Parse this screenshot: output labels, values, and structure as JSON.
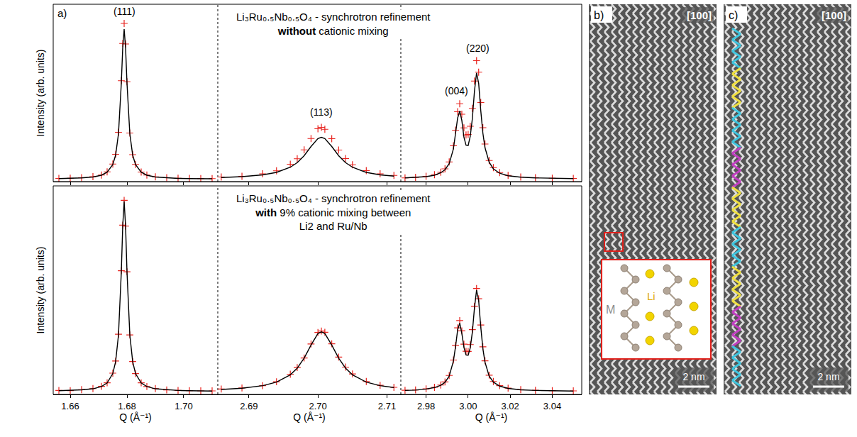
{
  "panel_label": "a)",
  "chart_data": [
    {
      "type": "scatter",
      "grid": false,
      "tick_labels": false,
      "ylabel": "Intensity (arb. units)",
      "x": [
        1.656,
        1.66,
        1.664,
        1.668,
        1.671,
        1.673,
        1.675,
        1.676,
        1.677,
        1.678,
        1.6785,
        1.679,
        1.6795,
        1.68,
        1.681,
        1.682,
        1.683,
        1.685,
        1.687,
        1.69,
        1.694,
        1.698,
        1.702,
        1.706,
        1.71
      ],
      "xlim": [
        1.654,
        1.712
      ],
      "xticks": [
        1.66,
        1.68,
        {
          "value": 1.7,
          "label": "1.70"
        }
      ],
      "ylim": [
        0,
        100
      ],
      "annotations": [
        {
          "text": "(111)",
          "x": 1.679,
          "y": 96
        }
      ],
      "series": [
        {
          "type": "scatter",
          "marker": "cross",
          "color": "#e8231e",
          "values": [
            1.8,
            1.9,
            2.2,
            2.8,
            3.7,
            5.5,
            9.9,
            15.4,
            27.8,
            56.9,
            77.9,
            89.2,
            77.6,
            56.3,
            27.4,
            15.2,
            9.7,
            5.4,
            3.7,
            2.7,
            2.2,
            1.9,
            1.8,
            1.7,
            1.7
          ]
        },
        {
          "type": "line",
          "line_style": "solid",
          "color": "#000000",
          "values": [
            1.7,
            1.8,
            2.1,
            2.6,
            3.6,
            5.3,
            9.6,
            15.0,
            27.0,
            55.5,
            75.5,
            86.0,
            75.5,
            55.5,
            27.0,
            15.0,
            9.6,
            5.3,
            3.6,
            2.6,
            2.1,
            1.8,
            1.7,
            1.6,
            1.6
          ]
        }
      ]
    },
    {
      "type": "scatter",
      "grid": false,
      "tick_labels": false,
      "title": [
        "Li₃Ru₀.₅Nb₀.₅O₄ - synchrotron refinement",
        "without cationic mixing"
      ],
      "title_bold": "without",
      "x": [
        2.686,
        2.689,
        2.692,
        2.694,
        2.696,
        2.697,
        2.698,
        2.699,
        2.7,
        2.7005,
        2.701,
        2.702,
        2.703,
        2.704,
        2.705,
        2.707,
        2.709,
        2.711
      ],
      "xlim": [
        2.6855,
        2.712
      ],
      "xticks": [
        2.69,
        {
          "value": 2.7,
          "label": "2.70"
        },
        2.71
      ],
      "ylim": [
        0,
        100
      ],
      "annotations": [
        {
          "text": "(113)",
          "x": 2.7005,
          "y": 39
        }
      ],
      "series": [
        {
          "type": "scatter",
          "marker": "cross",
          "color": "#e8231e",
          "values": [
            2.6,
            3.0,
            4.4,
            6.1,
            9.8,
            12.9,
            17.9,
            24.3,
            29.8,
            30.6,
            29.5,
            24.2,
            17.8,
            13.0,
            9.5,
            6.2,
            4.4,
            3.5
          ]
        },
        {
          "type": "line",
          "line_style": "solid",
          "color": "#000000",
          "values": [
            2.3,
            2.8,
            3.8,
            5.2,
            8.1,
            10.7,
            14.6,
            19.8,
            24.3,
            25.0,
            24.3,
            19.8,
            14.6,
            10.7,
            8.1,
            5.2,
            3.8,
            3.1
          ]
        }
      ]
    },
    {
      "type": "scatter",
      "grid": false,
      "tick_labels": false,
      "x": [
        2.97,
        2.975,
        2.98,
        2.984,
        2.987,
        2.989,
        2.991,
        2.993,
        2.994,
        2.995,
        2.996,
        2.997,
        2.998,
        2.999,
        3.0,
        3.001,
        3.002,
        3.003,
        3.004,
        3.005,
        3.006,
        3.007,
        3.008,
        3.01,
        3.012,
        3.015,
        3.019,
        3.025,
        3.032,
        3.04,
        3.05
      ],
      "xlim": [
        2.968,
        3.054
      ],
      "xticks": [
        2.98,
        {
          "value": 3,
          "label": "3.00"
        },
        3.02,
        3.04
      ],
      "ylim": [
        0,
        100
      ],
      "annotations": [
        {
          "text": "(004)",
          "x": 2.9945,
          "y": 51
        },
        {
          "text": "(220)",
          "x": 3.0045,
          "y": 75
        }
      ],
      "series": [
        {
          "type": "scatter",
          "marker": "cross",
          "color": "#e8231e",
          "values": [
            2.1,
            2.4,
            3.0,
            3.9,
            5.3,
            7.2,
            11.1,
            20.2,
            29.0,
            39.4,
            43.9,
            38.0,
            30.3,
            26.3,
            26.6,
            31.2,
            41.3,
            56.7,
            68.2,
            61.7,
            44.6,
            30.4,
            21.2,
            11.9,
            7.9,
            5.1,
            3.5,
            2.6,
            2.2,
            1.9,
            1.8
          ]
        },
        {
          "type": "line",
          "line_style": "solid",
          "color": "#000000",
          "values": [
            2.1,
            2.3,
            2.8,
            3.6,
            5.0,
            6.7,
            10.1,
            18.4,
            26.3,
            35.8,
            39.8,
            34.5,
            25.0,
            20.5,
            20.3,
            25.5,
            35.5,
            50.9,
            61.3,
            55.5,
            40.1,
            27.4,
            19.2,
            10.9,
            7.2,
            4.7,
            3.3,
            2.5,
            2.1,
            1.9,
            1.7
          ]
        }
      ]
    },
    {
      "type": "scatter",
      "grid": false,
      "tick_labels": "x",
      "ylabel": "Intensity (arb. units)",
      "xlabel": "Q (Å⁻¹)",
      "x": [
        1.656,
        1.66,
        1.664,
        1.668,
        1.671,
        1.673,
        1.675,
        1.676,
        1.677,
        1.678,
        1.6785,
        1.679,
        1.6795,
        1.68,
        1.681,
        1.682,
        1.683,
        1.685,
        1.687,
        1.69,
        1.694,
        1.698,
        1.702,
        1.706,
        1.71
      ],
      "xlim": [
        1.654,
        1.712
      ],
      "xticks": [
        1.66,
        1.68,
        {
          "value": 1.7,
          "label": "1.70"
        }
      ],
      "ylim": [
        0,
        100
      ],
      "series": [
        {
          "type": "scatter",
          "marker": "cross",
          "color": "#e8231e",
          "values": [
            1.9,
            1.8,
            2.3,
            2.8,
            3.9,
            5.6,
            10.2,
            16.0,
            28.9,
            59.3,
            81.2,
            93.1,
            80.7,
            58.8,
            28.5,
            15.8,
            10.0,
            5.6,
            3.8,
            2.8,
            2.2,
            1.9,
            1.8,
            1.7,
            1.7
          ]
        },
        {
          "type": "line",
          "line_style": "solid",
          "color": "#000000",
          "values": [
            1.8,
            1.9,
            2.2,
            2.7,
            3.8,
            5.5,
            10.0,
            15.8,
            28.5,
            58.8,
            80.8,
            92.6,
            80.8,
            58.8,
            28.5,
            15.8,
            10.0,
            5.5,
            3.8,
            2.7,
            2.2,
            1.9,
            1.8,
            1.7,
            1.6
          ]
        }
      ]
    },
    {
      "type": "scatter",
      "grid": false,
      "tick_labels": "x",
      "xlabel": "Q (Å⁻¹)",
      "title": [
        "Li₃Ru₀.₅Nb₀.₅O₄ - synchrotron refinement",
        "with 9% cationic mixing between",
        "Li2 and Ru/Nb"
      ],
      "title_bold": "with",
      "x": [
        2.686,
        2.689,
        2.692,
        2.694,
        2.696,
        2.697,
        2.698,
        2.699,
        2.7,
        2.7005,
        2.701,
        2.702,
        2.703,
        2.704,
        2.705,
        2.707,
        2.709,
        2.711
      ],
      "xlim": [
        2.6855,
        2.712
      ],
      "xticks": [
        2.69,
        {
          "value": 2.7,
          "label": "2.70"
        },
        2.71
      ],
      "ylim": [
        0,
        100
      ],
      "series": [
        {
          "type": "scatter",
          "marker": "cross",
          "color": "#e8231e",
          "values": [
            2.6,
            3.1,
            4.2,
            6.1,
            9.7,
            12.9,
            17.5,
            24.2,
            29.7,
            30.4,
            29.8,
            24.3,
            17.9,
            13.1,
            9.8,
            6.2,
            4.4,
            3.4
          ]
        },
        {
          "type": "line",
          "line_style": "solid",
          "color": "#000000",
          "values": [
            2.4,
            3.0,
            4.2,
            5.9,
            9.4,
            12.6,
            17.4,
            23.7,
            29.2,
            30.0,
            29.2,
            23.7,
            17.4,
            12.6,
            9.4,
            5.9,
            4.2,
            3.3
          ]
        }
      ]
    },
    {
      "type": "scatter",
      "grid": false,
      "tick_labels": "x",
      "xlabel": "Q (Å⁻¹)",
      "x": [
        2.97,
        2.975,
        2.98,
        2.984,
        2.987,
        2.989,
        2.991,
        2.993,
        2.994,
        2.995,
        2.996,
        2.997,
        2.998,
        2.999,
        3.0,
        3.001,
        3.002,
        3.003,
        3.004,
        3.005,
        3.006,
        3.007,
        3.008,
        3.01,
        3.012,
        3.015,
        3.019,
        3.025,
        3.032,
        3.04,
        3.05
      ],
      "xlim": [
        2.968,
        3.054
      ],
      "xticks": [
        2.98,
        {
          "value": 3,
          "label": "3.00"
        },
        3.02,
        3.04
      ],
      "ylim": [
        0,
        100
      ],
      "series": [
        {
          "type": "scatter",
          "marker": "cross",
          "color": "#e8231e",
          "values": [
            2.0,
            2.2,
            2.7,
            3.4,
            4.5,
            6.0,
            9.1,
            16.5,
            23.5,
            31.9,
            35.4,
            30.5,
            24.1,
            20.7,
            20.6,
            23.9,
            31.1,
            42.3,
            50.8,
            45.9,
            33.3,
            22.8,
            16.1,
            9.2,
            6.2,
            4.2,
            3.0,
            2.3,
            2.0,
            1.8,
            1.7
          ]
        },
        {
          "type": "line",
          "line_style": "solid",
          "color": "#000000",
          "values": [
            1.9,
            2.1,
            2.6,
            3.3,
            4.4,
            5.8,
            8.8,
            16.0,
            22.8,
            30.9,
            34.2,
            29.3,
            22.6,
            18.9,
            18.8,
            22.3,
            29.8,
            41.4,
            50.0,
            45.0,
            32.4,
            22.0,
            15.5,
            8.8,
            5.9,
            4.0,
            2.9,
            2.2,
            1.9,
            1.7,
            1.6
          ]
        }
      ]
    }
  ],
  "images": [
    {
      "label": "b)",
      "zone_axis": "[100]",
      "scale_bar": "2 nm",
      "inset_labels": [
        "M",
        "Li"
      ]
    },
    {
      "label": "c)",
      "zone_axis": "[100]",
      "scale_bar": "2 nm"
    }
  ]
}
